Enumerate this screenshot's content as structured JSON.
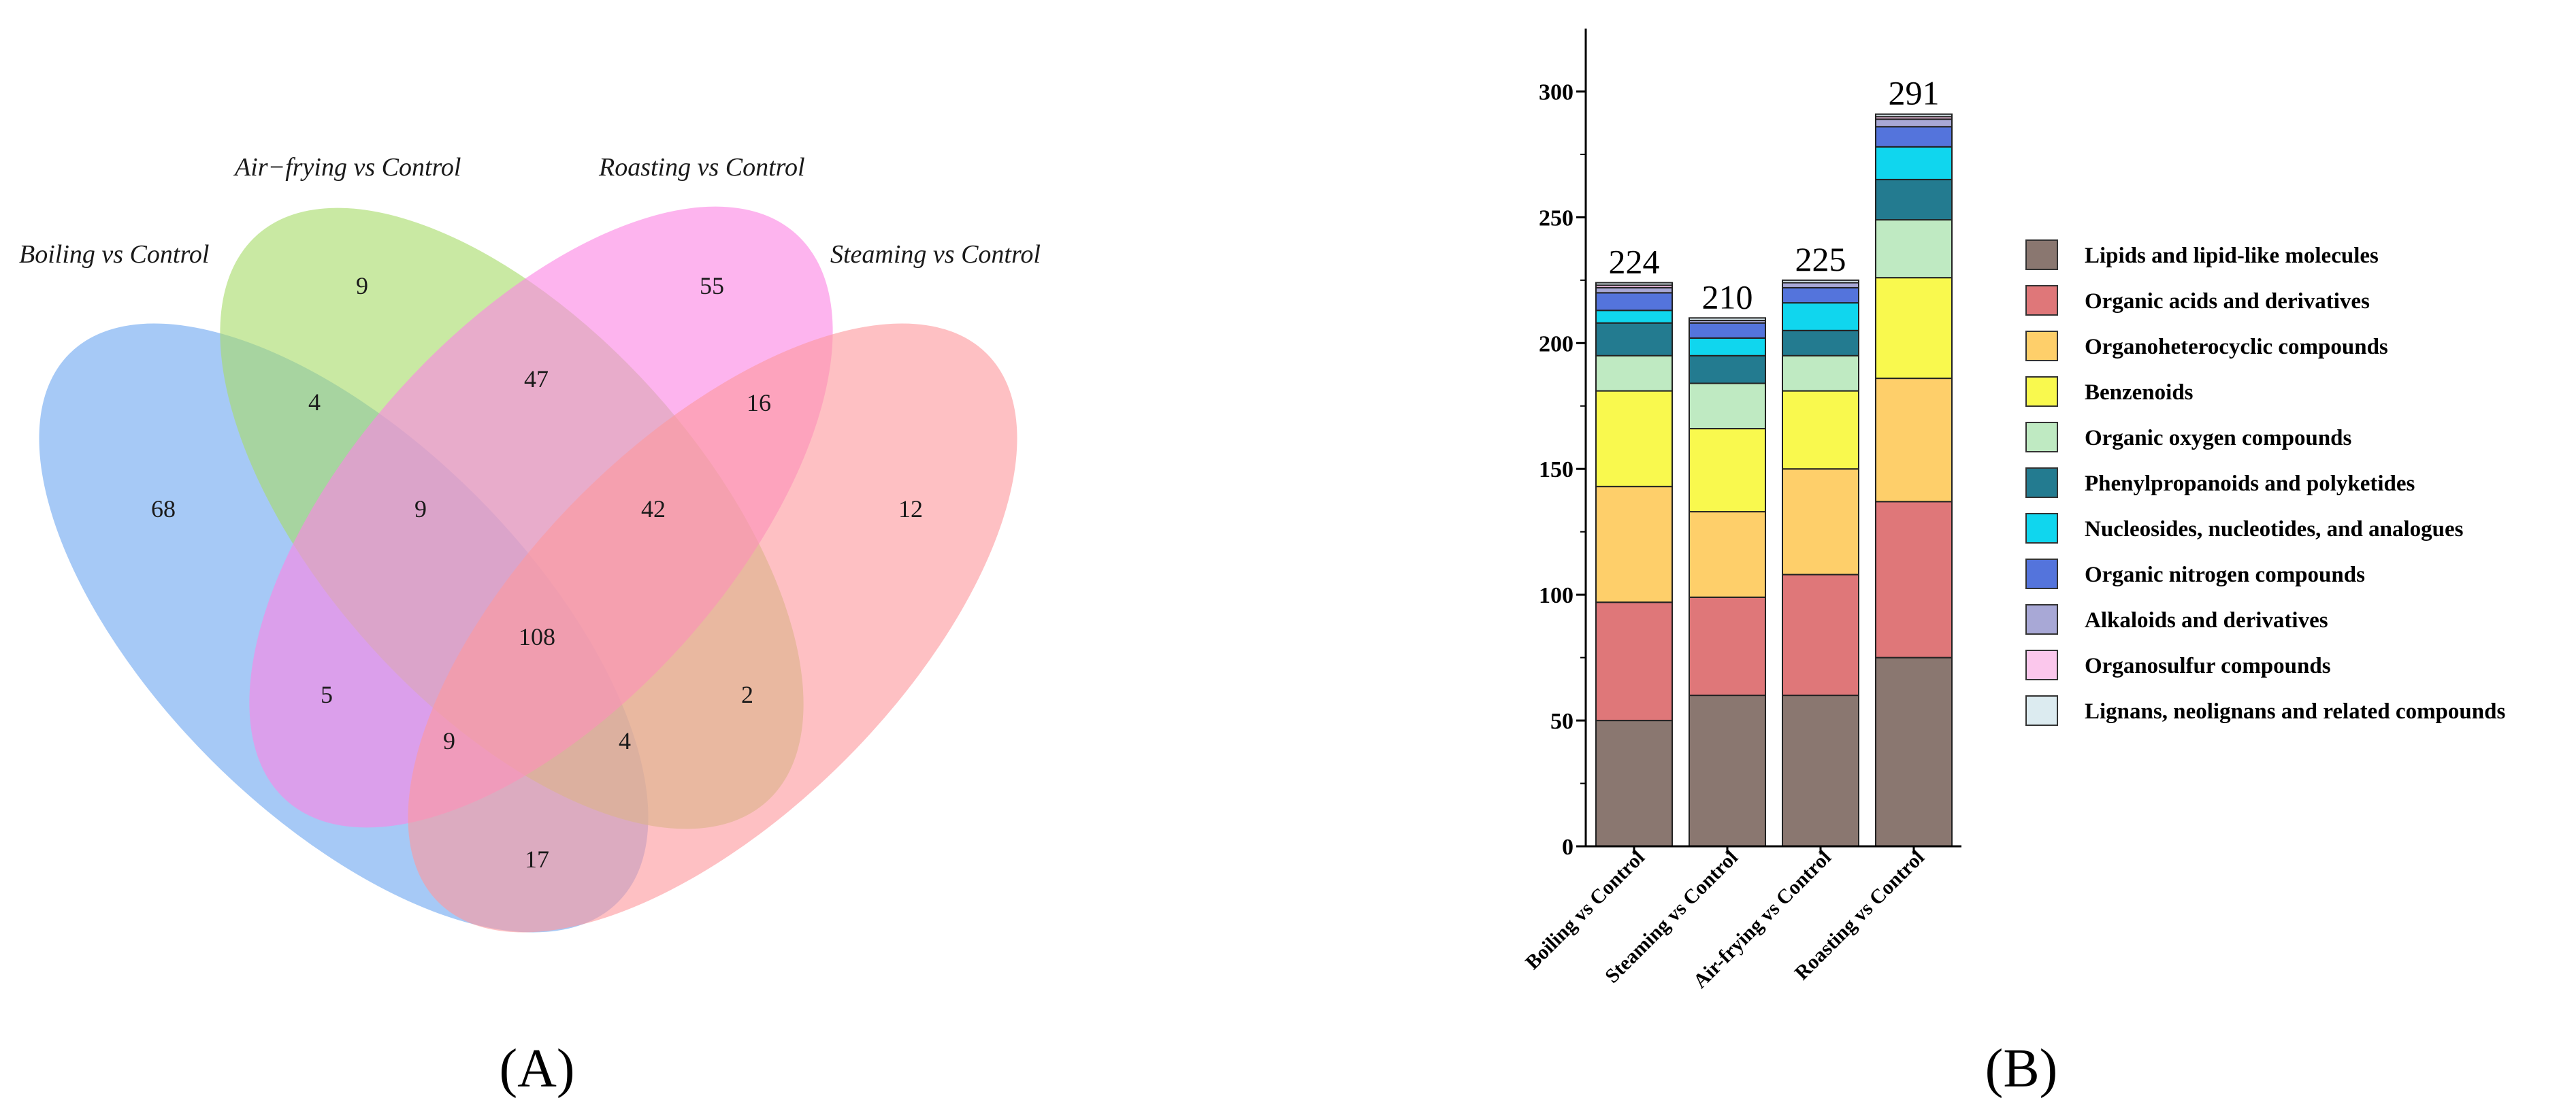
{
  "chart_data": [
    {
      "type": "venn",
      "panel_label": "(A)",
      "sets": [
        {
          "name": "Boiling vs Control",
          "color": "#6fa8f0"
        },
        {
          "name": "Air−frying vs Control",
          "color": "#a8dc6a"
        },
        {
          "name": "Roasting vs Control",
          "color": "#fb86e4"
        },
        {
          "name": "Steaming vs Control",
          "color": "#fd9a9e"
        }
      ],
      "regions": [
        {
          "sets": [
            "Boiling"
          ],
          "value": "68"
        },
        {
          "sets": [
            "Air-frying"
          ],
          "value": "9"
        },
        {
          "sets": [
            "Roasting"
          ],
          "value": "55"
        },
        {
          "sets": [
            "Steaming"
          ],
          "value": "12"
        },
        {
          "sets": [
            "Boiling",
            "Air-frying"
          ],
          "value": "4"
        },
        {
          "sets": [
            "Air-frying",
            "Roasting"
          ],
          "value": "47"
        },
        {
          "sets": [
            "Roasting",
            "Steaming"
          ],
          "value": "16"
        },
        {
          "sets": [
            "Boiling",
            "Air-frying",
            "Roasting"
          ],
          "value": "9"
        },
        {
          "sets": [
            "Air-frying",
            "Roasting",
            "Steaming"
          ],
          "value": "42"
        },
        {
          "sets": [
            "Boiling",
            "Air-frying",
            "Roasting",
            "Steaming"
          ],
          "value": "108"
        },
        {
          "sets": [
            "Boiling",
            "Roasting"
          ],
          "value": "5"
        },
        {
          "sets": [
            "Air-frying",
            "Steaming"
          ],
          "value": "2"
        },
        {
          "sets": [
            "Boiling",
            "Roasting",
            "Steaming"
          ],
          "value": "9"
        },
        {
          "sets": [
            "Boiling",
            "Air-frying",
            "Steaming"
          ],
          "value": "4"
        },
        {
          "sets": [
            "Boiling",
            "Steaming"
          ],
          "value": "17"
        }
      ]
    },
    {
      "type": "bar",
      "stacked": true,
      "panel_label": "(B)",
      "categories": [
        "Boiling vs Control",
        "Steaming vs Control",
        "Air-frying vs Control",
        "Roasting vs Control"
      ],
      "totals": [
        "224",
        "210",
        "225",
        "291"
      ],
      "ylim": [
        0,
        325
      ],
      "yticks": [
        "0",
        "50",
        "100",
        "150",
        "200",
        "250",
        "300"
      ],
      "ytick_values": [
        0,
        50,
        100,
        150,
        200,
        250,
        300
      ],
      "legend_position": "right",
      "series": [
        {
          "name": "Lipids and lipid-like molecules",
          "color": "#8a7770",
          "values": [
            50,
            60,
            60,
            75
          ]
        },
        {
          "name": "Organic acids and derivatives",
          "color": "#df7779",
          "values": [
            47,
            39,
            48,
            62
          ]
        },
        {
          "name": "Organoheterocyclic compounds",
          "color": "#fecf6a",
          "values": [
            46,
            34,
            42,
            49
          ]
        },
        {
          "name": "Benzenoids",
          "color": "#f9f94e",
          "values": [
            38,
            33,
            31,
            40
          ]
        },
        {
          "name": "Organic oxygen compounds",
          "color": "#bfeac2",
          "values": [
            14,
            18,
            14,
            23
          ]
        },
        {
          "name": "Phenylpropanoids and polyketides",
          "color": "#237b90",
          "values": [
            13,
            11,
            10,
            16
          ]
        },
        {
          "name": "Nucleosides, nucleotides, and analogues",
          "color": "#10d6ee",
          "values": [
            5,
            7,
            11,
            13
          ]
        },
        {
          "name": "Organic nitrogen compounds",
          "color": "#5474dc",
          "values": [
            7,
            6,
            6,
            8
          ]
        },
        {
          "name": "Alkaloids and derivatives",
          "color": "#a8a8d6",
          "values": [
            2,
            1,
            2,
            3
          ]
        },
        {
          "name": "Organosulfur compounds",
          "color": "#fbc7ec",
          "values": [
            1,
            0,
            0,
            1
          ]
        },
        {
          "name": "Lignans, neolignans and related compounds",
          "color": "#dcebf0",
          "values": [
            1,
            1,
            1,
            1
          ]
        }
      ]
    }
  ]
}
